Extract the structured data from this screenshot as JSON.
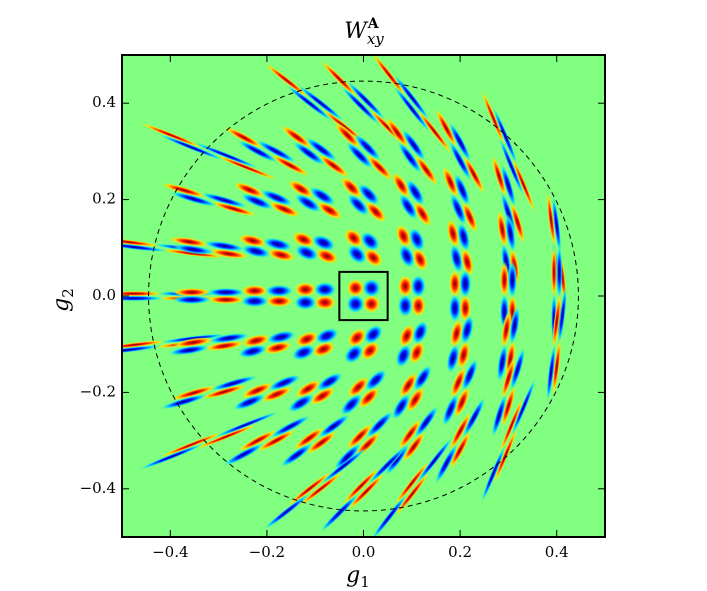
{
  "chart_data": {
    "type": "glyph-grid",
    "title": {
      "base": "W",
      "sub": "xy",
      "sup": "A"
    },
    "x_label": {
      "base": "g",
      "sub": "1"
    },
    "y_label": {
      "base": "g",
      "sub": "2"
    },
    "x": [
      -0.42,
      -0.32,
      -0.2,
      -0.1,
      0,
      0.1,
      0.2,
      0.3,
      0.4
    ],
    "y": [
      0.4,
      0.3,
      0.2,
      0.1,
      0,
      -0.1,
      -0.2,
      -0.3,
      -0.4
    ],
    "circle_radius": 0.445,
    "highlight": [
      -0.05,
      0.05,
      -0.05,
      0.05
    ],
    "background": "#80ff80",
    "xlim": [
      -0.5,
      0.5
    ],
    "ylim": [
      -0.5,
      0.5
    ],
    "xticks": [
      {
        "value": -0.4,
        "label": "−0.4"
      },
      {
        "value": -0.2,
        "label": "−0.2"
      },
      {
        "value": 0,
        "label": "0.0"
      },
      0.2,
      0.4
    ],
    "yticks": [
      {
        "value": -0.4,
        "label": "−0.4"
      },
      {
        "value": -0.2,
        "label": "−0.2"
      },
      {
        "value": 0,
        "label": "0.0"
      },
      0.2,
      0.4
    ]
  }
}
